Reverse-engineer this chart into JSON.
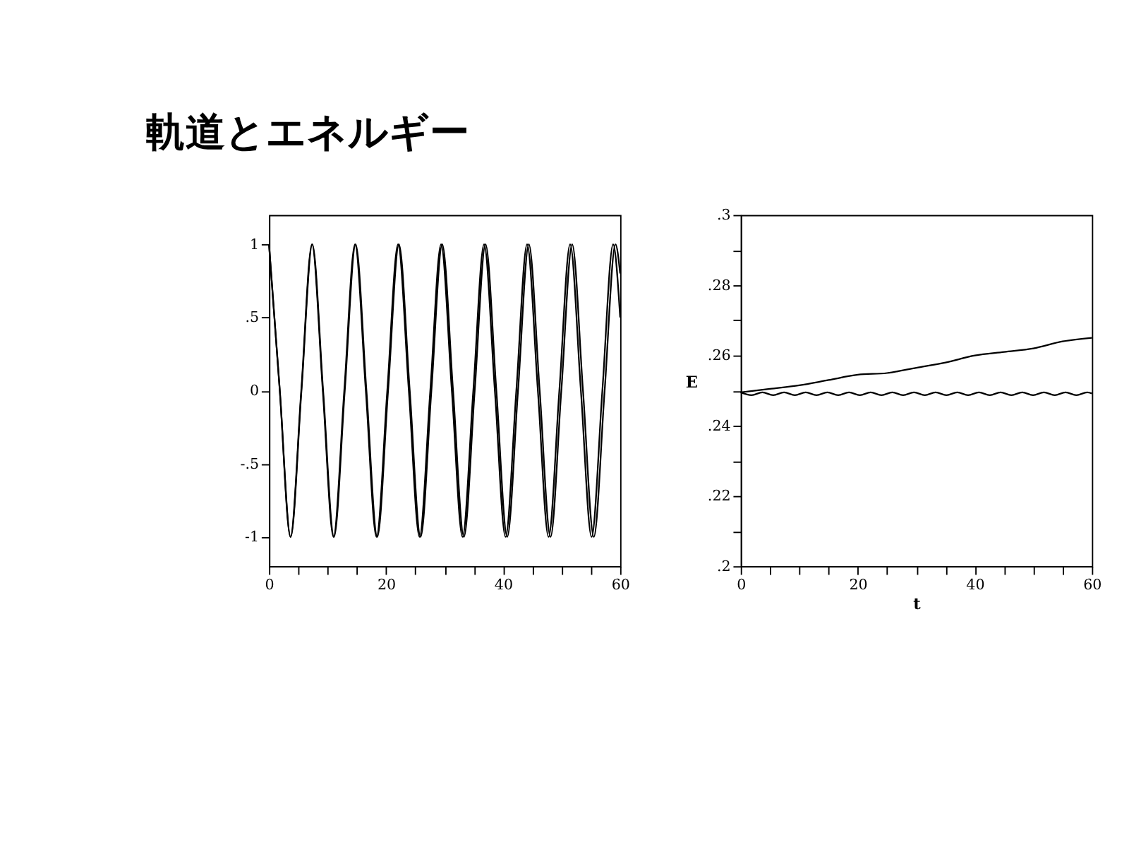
{
  "chart_data": [
    {
      "type": "line",
      "title": "軌道とエネルギー",
      "xlim": [
        0,
        60
      ],
      "ylim": [
        -1.2,
        1.2
      ],
      "xticks": [
        0,
        {
          "value": 5,
          "label": null
        },
        {
          "value": 10,
          "label": null
        },
        {
          "value": 15,
          "label": null
        },
        20,
        {
          "value": 25,
          "label": null
        },
        {
          "value": 30,
          "label": null
        },
        {
          "value": 35,
          "label": null
        },
        40,
        {
          "value": 45,
          "label": null
        },
        {
          "value": 50,
          "label": null
        },
        {
          "value": 55,
          "label": null
        },
        60
      ],
      "yticks": [
        {
          "value": -1,
          "label": "-1"
        },
        {
          "value": -0.5,
          "label": "-.5"
        },
        0,
        {
          "value": 0.5,
          "label": ".5"
        },
        1
      ],
      "grid": false,
      "marker": "none",
      "line_style": "solid",
      "series": [
        {
          "color": "#000000",
          "x": [
            0,
            1.84,
            3.67,
            5.51,
            7.35,
            9.19,
            11.02,
            12.86,
            14.7,
            16.54,
            18.37,
            20.21,
            22.05,
            23.89,
            25.72,
            27.56,
            29.4,
            31.24,
            33.07,
            34.91,
            36.75,
            38.59,
            40.42,
            42.26,
            44.1,
            45.94,
            47.77,
            49.61,
            51.45,
            53.29,
            55.12,
            56.96,
            58.8,
            60
          ],
          "values": [
            1,
            0,
            -1,
            0,
            1,
            0,
            -1,
            0,
            1,
            0,
            -1,
            0,
            1,
            0,
            -1,
            0,
            1,
            0,
            -1,
            0,
            1,
            0,
            -1,
            0,
            1,
            0,
            -1,
            0,
            1,
            0,
            -1,
            0,
            1,
            0.5
          ]
        },
        {
          "color": "#000000",
          "x": [
            0,
            1.85,
            3.7,
            5.55,
            7.4,
            9.25,
            11.1,
            12.95,
            14.8,
            16.65,
            18.5,
            20.35,
            22.2,
            24.05,
            25.9,
            27.75,
            29.6,
            31.45,
            33.3,
            35.15,
            37.0,
            38.85,
            40.7,
            42.55,
            44.4,
            46.25,
            48.1,
            49.95,
            51.8,
            53.65,
            55.5,
            57.35,
            59.2,
            60
          ],
          "values": [
            1,
            0,
            -1,
            0,
            1,
            0,
            -1,
            0,
            1,
            0,
            -1,
            0,
            1,
            0,
            -1,
            0,
            1,
            0,
            -1,
            0,
            1,
            0,
            -1,
            0,
            1,
            0,
            -1,
            0,
            1,
            0,
            -1,
            0,
            1,
            0.8
          ]
        }
      ]
    },
    {
      "type": "line",
      "xlabel": "t",
      "ylabel": "E",
      "xlim": [
        0,
        60
      ],
      "ylim": [
        0.2,
        0.3
      ],
      "xticks": [
        0,
        {
          "value": 5,
          "label": null
        },
        {
          "value": 10,
          "label": null
        },
        {
          "value": 15,
          "label": null
        },
        20,
        {
          "value": 25,
          "label": null
        },
        {
          "value": 30,
          "label": null
        },
        {
          "value": 35,
          "label": null
        },
        40,
        {
          "value": 45,
          "label": null
        },
        {
          "value": 50,
          "label": null
        },
        {
          "value": 55,
          "label": null
        },
        60
      ],
      "yticks": [
        {
          "value": 0.2,
          "label": ".2"
        },
        {
          "value": 0.21,
          "label": null
        },
        {
          "value": 0.22,
          "label": ".22"
        },
        {
          "value": 0.23,
          "label": null
        },
        {
          "value": 0.24,
          "label": ".24"
        },
        {
          "value": 0.25,
          "label": null
        },
        {
          "value": 0.26,
          "label": ".26"
        },
        {
          "value": 0.27,
          "label": null
        },
        {
          "value": 0.28,
          "label": ".28"
        },
        {
          "value": 0.29,
          "label": null
        },
        {
          "value": 0.3,
          "label": ".3"
        }
      ],
      "grid": false,
      "marker": "none",
      "line_style": "solid",
      "series": [
        {
          "color": "#000000",
          "x": [
            0,
            5,
            10,
            15,
            20,
            25,
            30,
            35,
            40,
            45,
            50,
            55,
            60
          ],
          "values": [
            0.2495,
            0.2505,
            0.2515,
            0.253,
            0.2545,
            0.255,
            0.2565,
            0.258,
            0.26,
            0.261,
            0.262,
            0.264,
            0.265
          ]
        },
        {
          "color": "#000000",
          "x": [
            0,
            1.85,
            3.7,
            5.55,
            7.4,
            9.25,
            11.1,
            12.95,
            14.8,
            16.65,
            18.5,
            20.35,
            22.2,
            24.05,
            25.9,
            27.75,
            29.6,
            31.45,
            33.3,
            35.15,
            37.0,
            38.85,
            40.7,
            42.55,
            44.4,
            46.25,
            48.1,
            49.95,
            51.8,
            53.65,
            55.5,
            57.35,
            59.2,
            60
          ],
          "values": [
            0.2495,
            0.2487,
            0.2495,
            0.2487,
            0.2495,
            0.2487,
            0.2495,
            0.2487,
            0.2495,
            0.2487,
            0.2495,
            0.2487,
            0.2495,
            0.2487,
            0.2495,
            0.2487,
            0.2495,
            0.2487,
            0.2495,
            0.2487,
            0.2495,
            0.2487,
            0.2495,
            0.2487,
            0.2495,
            0.2487,
            0.2495,
            0.2487,
            0.2495,
            0.2487,
            0.2495,
            0.2487,
            0.2495,
            0.2492
          ]
        }
      ]
    }
  ]
}
